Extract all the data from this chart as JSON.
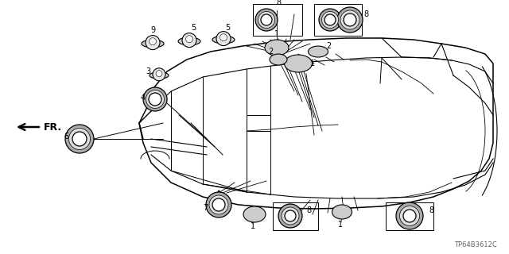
{
  "bg_color": "#ffffff",
  "watermark": "TP64B3612C",
  "fr_label": "FR.",
  "figsize": [
    6.4,
    3.2
  ],
  "dpi": 100
}
